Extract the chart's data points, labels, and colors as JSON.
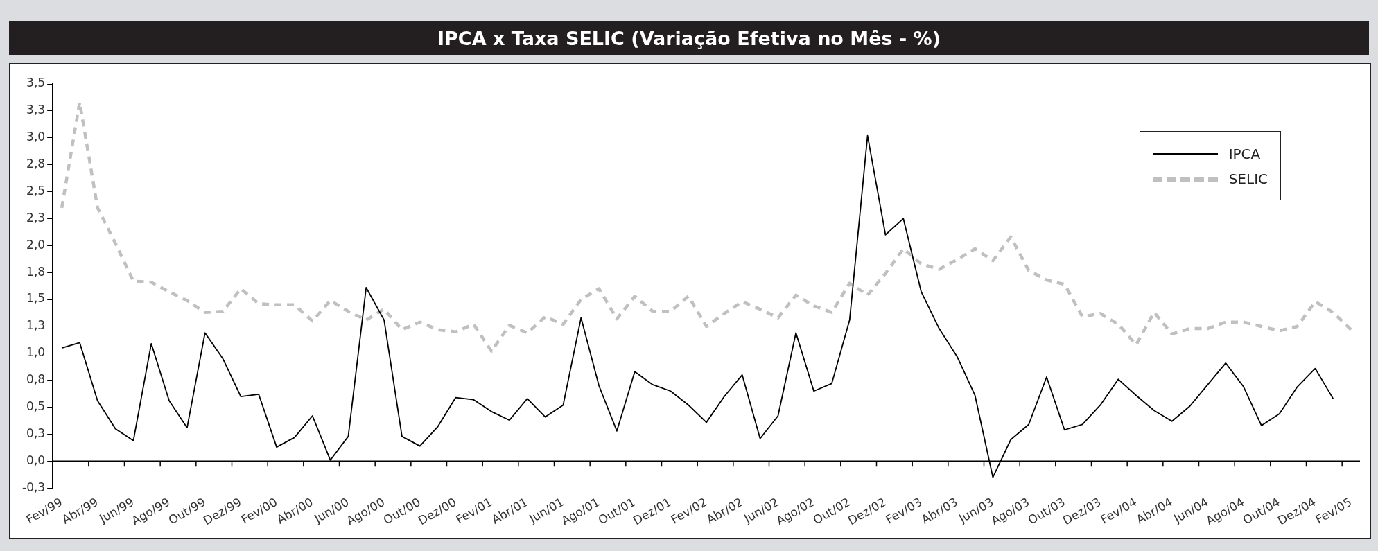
{
  "chart_data": {
    "type": "line",
    "title": "IPCA x Taxa SELIC (Variação Efetiva no Mês - %)",
    "categories": [
      "Fev/99",
      null,
      "Abr/99",
      null,
      "Jun/99",
      null,
      "Ago/99",
      null,
      "Out/99",
      null,
      "Dez/99",
      null,
      "Fev/00",
      null,
      "Abr/00",
      null,
      "Jun/00",
      null,
      "Ago/00",
      null,
      "Out/00",
      null,
      "Dez/00",
      null,
      "Fev/01",
      null,
      "Abr/01",
      null,
      "Jun/01",
      null,
      "Ago/01",
      null,
      "Out/01",
      null,
      "Dez/01",
      null,
      "Fev/02",
      null,
      "Abr/02",
      null,
      "Jun/02",
      null,
      "Ago/02",
      null,
      "Out/02",
      null,
      "Dez/02",
      null,
      "Fev/03",
      null,
      "Abr/03",
      null,
      "Jun/03",
      null,
      "Ago/03",
      null,
      "Out/03",
      null,
      "Dez/03",
      null,
      "Fev/04",
      null,
      "Abr/04",
      null,
      "Jun/04",
      null,
      "Ago/04",
      null,
      "Out/04",
      null,
      "Dez/04",
      null,
      "Fev/05"
    ],
    "series": [
      {
        "name": "IPCA",
        "color": "#000000",
        "line_style": "solid",
        "values": [
          1.05,
          1.1,
          0.56,
          0.3,
          0.19,
          1.09,
          0.56,
          0.31,
          1.19,
          0.95,
          0.6,
          0.62,
          0.13,
          0.22,
          0.42,
          0.01,
          0.23,
          1.61,
          1.31,
          0.23,
          0.14,
          0.32,
          0.59,
          0.57,
          0.46,
          0.38,
          0.58,
          0.41,
          0.52,
          1.33,
          0.7,
          0.28,
          0.83,
          0.71,
          0.65,
          0.52,
          0.36,
          0.6,
          0.8,
          0.21,
          0.42,
          1.19,
          0.65,
          0.72,
          1.31,
          3.02,
          2.1,
          2.25,
          1.57,
          1.23,
          0.97,
          0.61,
          -0.15,
          0.2,
          0.34,
          0.78,
          0.29,
          0.34,
          0.52,
          0.76,
          0.61,
          0.47,
          0.37,
          0.51,
          0.71,
          0.91,
          0.69,
          0.33,
          0.44,
          0.69,
          0.86,
          0.58,
          null
        ]
      },
      {
        "name": "SELIC",
        "color": "#c0c0c0",
        "line_style": "dashed",
        "values": [
          2.35,
          3.33,
          2.35,
          2.02,
          1.67,
          1.66,
          1.57,
          1.49,
          1.38,
          1.39,
          1.6,
          1.46,
          1.45,
          1.45,
          1.3,
          1.49,
          1.39,
          1.31,
          1.41,
          1.22,
          1.29,
          1.22,
          1.2,
          1.27,
          1.02,
          1.26,
          1.19,
          1.34,
          1.27,
          1.5,
          1.6,
          1.32,
          1.53,
          1.39,
          1.39,
          1.53,
          1.25,
          1.37,
          1.48,
          1.41,
          1.33,
          1.54,
          1.44,
          1.38,
          1.65,
          1.54,
          1.74,
          1.97,
          1.83,
          1.78,
          1.87,
          1.97,
          1.86,
          2.08,
          1.77,
          1.68,
          1.64,
          1.34,
          1.37,
          1.27,
          1.08,
          1.38,
          1.18,
          1.23,
          1.23,
          1.29,
          1.29,
          1.25,
          1.21,
          1.25,
          1.48,
          1.38,
          1.22
        ]
      }
    ],
    "ylim": [
      -0.25,
      3.5
    ],
    "yticks": [
      {
        "value": -0.25,
        "label": "-0,3"
      },
      {
        "value": 0,
        "label": "0,0"
      },
      {
        "value": 0.25,
        "label": "0,3"
      },
      {
        "value": 0.5,
        "label": "0,5"
      },
      {
        "value": 0.75,
        "label": "0,8"
      },
      {
        "value": 1,
        "label": "1,0"
      },
      {
        "value": 1.25,
        "label": "1,3"
      },
      {
        "value": 1.5,
        "label": "1,5"
      },
      {
        "value": 1.75,
        "label": "1,8"
      },
      {
        "value": 2,
        "label": "2,0"
      },
      {
        "value": 2.25,
        "label": "2,3"
      },
      {
        "value": 2.5,
        "label": "2,5"
      },
      {
        "value": 2.75,
        "label": "2,8"
      },
      {
        "value": 3,
        "label": "3,0"
      },
      {
        "value": 3.25,
        "label": "3,3"
      },
      {
        "value": 3.5,
        "label": "3,5"
      }
    ],
    "legend": "top right"
  }
}
